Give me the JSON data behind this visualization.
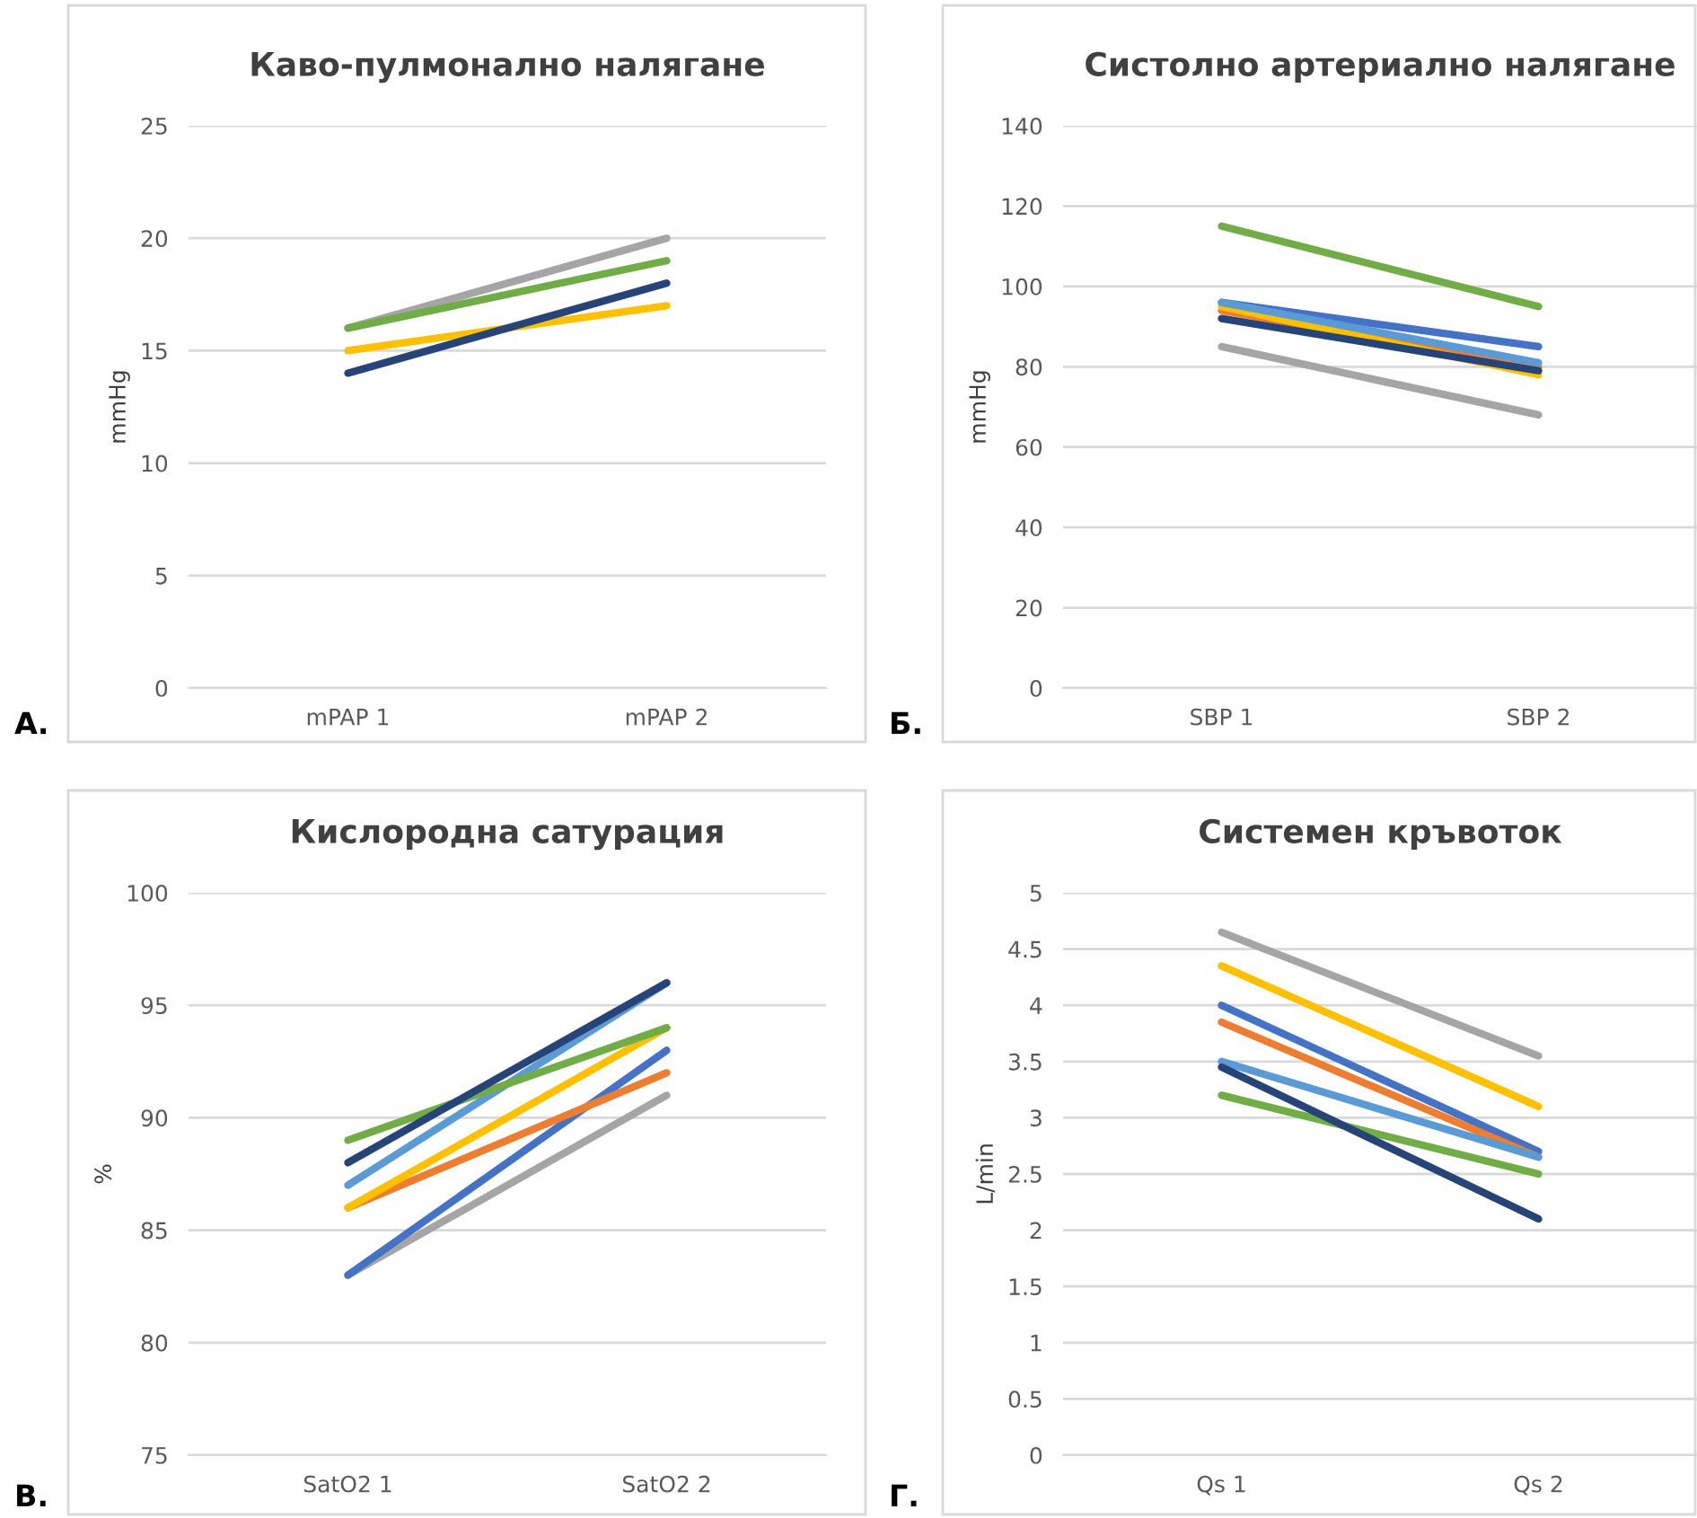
{
  "chart_data": [
    {
      "type": "line",
      "title": "Каво-пулмонално налягане",
      "ylabel": "mmHg",
      "categories": [
        "mPAP 1",
        "mPAP 2"
      ],
      "ylim": [
        0,
        25
      ],
      "yticks": [
        0,
        5,
        10,
        15,
        20,
        25
      ],
      "grid": "y",
      "legend": false,
      "annotations": [
        "А."
      ],
      "series": [
        {
          "color": "#a5a5a5",
          "values": [
            16,
            20
          ]
        },
        {
          "color": "#70ad47",
          "values": [
            16,
            19
          ]
        },
        {
          "color": "#ffc000",
          "values": [
            15,
            17
          ]
        },
        {
          "color": "#264478",
          "values": [
            14,
            18
          ]
        }
      ]
    },
    {
      "type": "line",
      "title": "Систолно артериално налягане",
      "ylabel": "mmHg",
      "categories": [
        "SBP 1",
        "SBP 2"
      ],
      "ylim": [
        0,
        140
      ],
      "yticks": [
        0,
        20,
        40,
        60,
        80,
        100,
        120,
        140
      ],
      "grid": "y",
      "legend": false,
      "annotations": [
        "Б."
      ],
      "series": [
        {
          "color": "#70ad47",
          "values": [
            115,
            95
          ]
        },
        {
          "color": "#ed7d31",
          "values": [
            94,
            80
          ]
        },
        {
          "color": "#ffc000",
          "values": [
            95,
            78
          ]
        },
        {
          "color": "#4472c4",
          "values": [
            96,
            85
          ]
        },
        {
          "color": "#5b9bd5",
          "values": [
            96,
            81
          ]
        },
        {
          "color": "#264478",
          "values": [
            92,
            79
          ]
        },
        {
          "color": "#a5a5a5",
          "values": [
            85,
            68
          ]
        }
      ]
    },
    {
      "type": "line",
      "title": "Кислородна сатурация",
      "ylabel": "%",
      "categories": [
        "SatO2 1",
        "SatO2 2"
      ],
      "ylim": [
        75,
        100
      ],
      "yticks": [
        75,
        80,
        85,
        90,
        95,
        100
      ],
      "grid": "y",
      "legend": false,
      "annotations": [
        "В."
      ],
      "series": [
        {
          "color": "#a5a5a5",
          "values": [
            83,
            91
          ]
        },
        {
          "color": "#4472c4",
          "values": [
            83,
            93
          ]
        },
        {
          "color": "#ed7d31",
          "values": [
            86,
            92
          ]
        },
        {
          "color": "#ffc000",
          "values": [
            86,
            94
          ]
        },
        {
          "color": "#5b9bd5",
          "values": [
            87,
            96
          ]
        },
        {
          "color": "#70ad47",
          "values": [
            89,
            94
          ]
        },
        {
          "color": "#264478",
          "values": [
            88,
            96
          ]
        }
      ]
    },
    {
      "type": "line",
      "title": "Системен кръвоток",
      "ylabel": "L/min",
      "categories": [
        "Qs 1",
        "Qs 2"
      ],
      "ylim": [
        0,
        5
      ],
      "yticks": [
        0,
        0.5,
        1,
        1.5,
        2,
        2.5,
        3,
        3.5,
        4,
        4.5,
        5
      ],
      "grid": "y",
      "legend": false,
      "annotations": [
        "Г."
      ],
      "series": [
        {
          "color": "#a5a5a5",
          "values": [
            4.65,
            3.55
          ]
        },
        {
          "color": "#ffc000",
          "values": [
            4.35,
            3.1
          ]
        },
        {
          "color": "#4472c4",
          "values": [
            4.0,
            2.7
          ]
        },
        {
          "color": "#ed7d31",
          "values": [
            3.85,
            2.65
          ]
        },
        {
          "color": "#5b9bd5",
          "values": [
            3.5,
            2.65
          ]
        },
        {
          "color": "#70ad47",
          "values": [
            3.2,
            2.5
          ]
        },
        {
          "color": "#264478",
          "values": [
            3.45,
            2.1
          ]
        }
      ]
    }
  ]
}
